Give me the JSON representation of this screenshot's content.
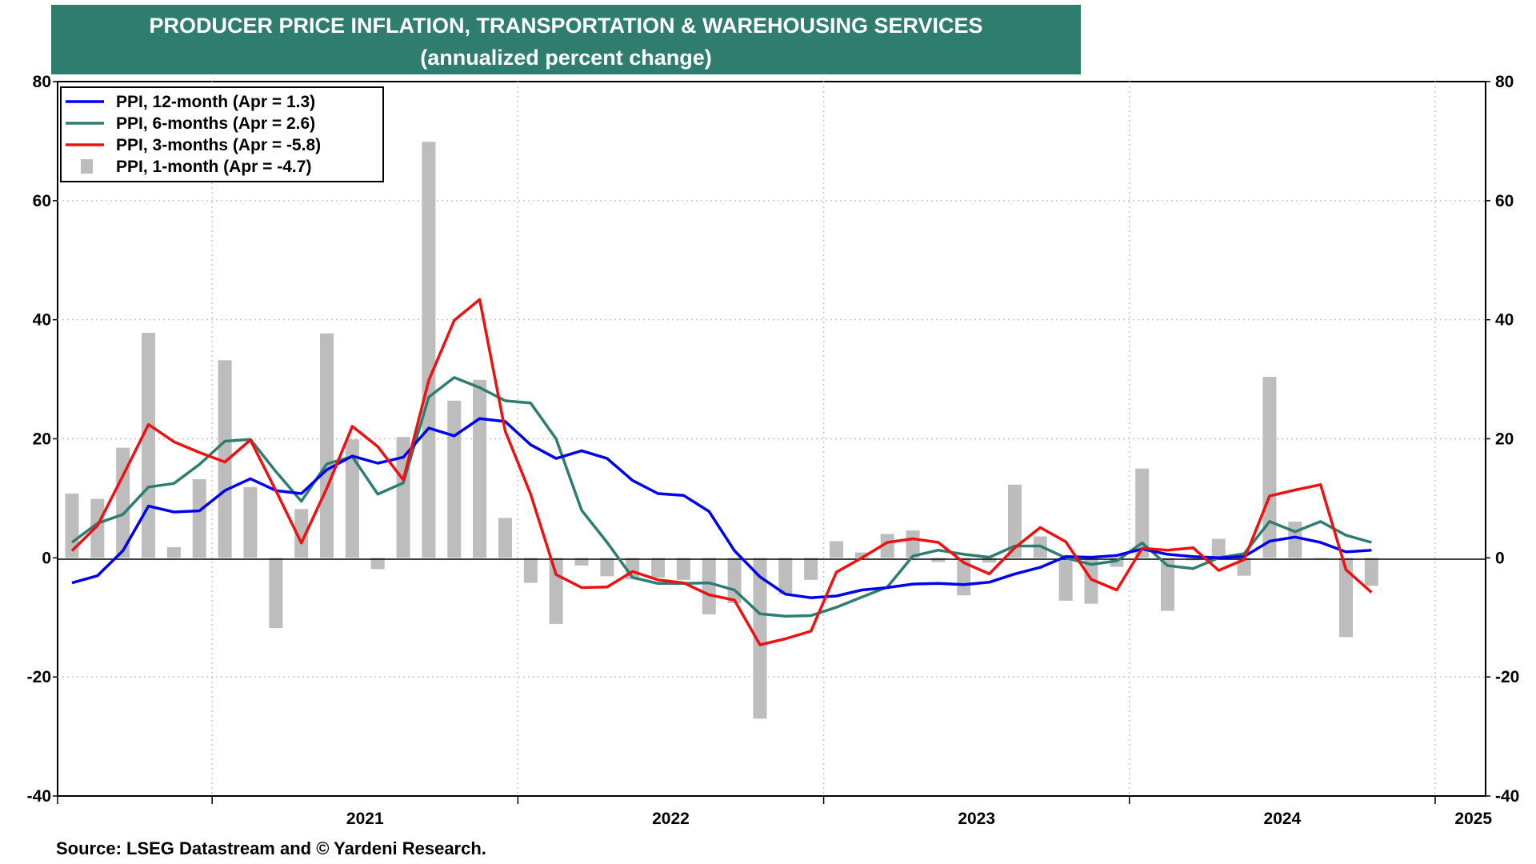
{
  "title": "PRODUCER PRICE INFLATION, TRANSPORTATION & WAREHOUSING SERVICES",
  "subtitle": "(annualized percent change)",
  "source": "Source: LSEG Datastream and © Yardeni Research.",
  "colors": {
    "title_bg": "#2e7d6f",
    "ppi_12": "#0000ee",
    "ppi_6": "#2e7d6f",
    "ppi_3": "#ee1111",
    "ppi_1": "#bdbdbd"
  },
  "chart_data": {
    "type": "line",
    "title": "PRODUCER PRICE INFLATION, TRANSPORTATION & WAREHOUSING SERVICES",
    "subtitle": "(annualized percent change)",
    "xlabel": "",
    "ylabel": "",
    "ylim": [
      -40,
      80
    ],
    "yticks": [
      -40,
      -20,
      0,
      20,
      40,
      60,
      80
    ],
    "grid": true,
    "legend_position": "top-left",
    "x_tick_labels": [
      "2021",
      "2022",
      "2023",
      "2024",
      "2025"
    ],
    "x_start": "2020-07",
    "x_end": "2025-04",
    "series": [
      {
        "name": "PPI, 12-month (Apr = 1.3)",
        "type": "line",
        "values": [
          -4.2,
          -3.0,
          1.2,
          8.7,
          7.7,
          7.9,
          11.3,
          13.3,
          11.3,
          10.8,
          14.8,
          17.1,
          15.9,
          16.9,
          21.8,
          20.5,
          23.4,
          22.9,
          19.0,
          16.7,
          18.0,
          16.7,
          13.0,
          10.8,
          10.5,
          7.8,
          1.2,
          -3.2,
          -6.1,
          -6.7,
          -6.4,
          -5.4,
          -5.0,
          -4.4,
          -4.3,
          -4.5,
          -4.1,
          -2.7,
          -1.6,
          0.2,
          0.1,
          0.4,
          1.5,
          0.6,
          0.2,
          0.0,
          0.2,
          2.8,
          3.5,
          2.6,
          1.0,
          1.3
        ]
      },
      {
        "name": "PPI, 6-months (Apr = 2.6)",
        "type": "line",
        "values": [
          2.6,
          5.8,
          7.3,
          11.9,
          12.5,
          15.7,
          19.6,
          19.9,
          14.5,
          9.5,
          15.8,
          17.0,
          10.7,
          12.6,
          27.0,
          30.3,
          28.6,
          26.4,
          26.0,
          20.0,
          8.0,
          2.6,
          -3.3,
          -4.3,
          -4.3,
          -4.2,
          -5.4,
          -9.4,
          -9.8,
          -9.7,
          -8.3,
          -6.6,
          -4.9,
          0.3,
          1.3,
          0.6,
          0.1,
          2.0,
          2.0,
          0.0,
          -1.1,
          -0.5,
          2.5,
          -1.3,
          -1.8,
          0.0,
          0.7,
          6.1,
          4.4,
          6.1,
          3.8,
          2.6
        ]
      },
      {
        "name": "PPI, 3-months (Apr = -5.8)",
        "type": "line",
        "values": [
          1.2,
          5.4,
          13.8,
          22.4,
          19.5,
          17.7,
          16.1,
          19.8,
          11.3,
          2.5,
          11.7,
          22.1,
          18.7,
          13.1,
          29.8,
          39.9,
          43.4,
          21.3,
          10.7,
          -2.8,
          -5.0,
          -4.9,
          -2.3,
          -3.7,
          -4.2,
          -6.2,
          -7.1,
          -14.6,
          -13.6,
          -12.3,
          -2.4,
          0.0,
          2.6,
          3.2,
          2.6,
          -0.8,
          -2.7,
          1.7,
          5.1,
          2.7,
          -3.6,
          -5.4,
          1.6,
          1.3,
          1.7,
          -2.1,
          -0.3,
          10.4,
          11.4,
          12.3,
          -2.0,
          -5.8
        ]
      },
      {
        "name": "PPI, 1-month (Apr = -4.7)",
        "type": "bar",
        "values": [
          10.8,
          9.9,
          18.5,
          37.8,
          1.8,
          13.2,
          33.2,
          11.9,
          -11.8,
          8.2,
          37.7,
          19.9,
          -1.9,
          20.3,
          69.9,
          26.4,
          29.9,
          6.7,
          -4.2,
          -11.1,
          -1.3,
          -3.1,
          -3.6,
          -3.3,
          -3.7,
          -9.5,
          -7.6,
          -27.0,
          -6.1,
          -3.7,
          2.8,
          0.9,
          4.0,
          4.6,
          -0.7,
          -6.3,
          -0.8,
          12.3,
          3.6,
          -7.2,
          -7.7,
          -1.5,
          15.0,
          -8.9,
          -0.4,
          3.2,
          -3.0,
          30.4,
          6.1,
          -0.1,
          -13.3,
          -4.7
        ]
      }
    ]
  }
}
